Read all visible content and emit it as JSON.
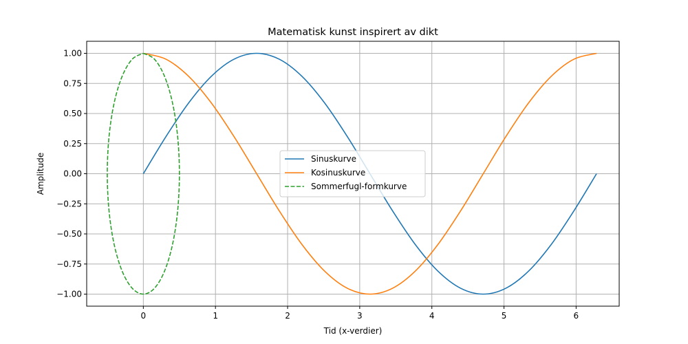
{
  "chart_data": {
    "type": "line",
    "title": "Matematisk kunst inspirert av dikt",
    "xlabel": "Tid (x-verdier)",
    "ylabel": "Amplitude",
    "xlim": [
      -0.7854,
      6.5973
    ],
    "ylim": [
      -1.1,
      1.1
    ],
    "xticks": [
      0,
      1,
      2,
      3,
      4,
      5,
      6
    ],
    "yticks": [
      -1.0,
      -0.75,
      -0.5,
      -0.25,
      0.0,
      0.25,
      0.5,
      0.75,
      1.0
    ],
    "grid": true,
    "legend_position": "center",
    "series": [
      {
        "name": "Sinuskurve",
        "color": "#1f77b4",
        "style": "solid",
        "x": [
          0,
          0.3142,
          0.6283,
          0.9425,
          1.2566,
          1.5708,
          1.885,
          2.1991,
          2.5133,
          2.8274,
          3.1416,
          3.4558,
          3.7699,
          4.0841,
          4.3982,
          4.7124,
          5.0265,
          5.3407,
          5.6549,
          5.969,
          6.2832
        ],
        "y": [
          0,
          0.309,
          0.5878,
          0.809,
          0.9511,
          1.0,
          0.9511,
          0.809,
          0.5878,
          0.309,
          0,
          -0.309,
          -0.5878,
          -0.809,
          -0.9511,
          -1.0,
          -0.9511,
          -0.809,
          -0.5878,
          -0.309,
          0
        ]
      },
      {
        "name": "Kosinuskurve",
        "color": "#ff7f0e",
        "style": "solid",
        "x": [
          0,
          0.3142,
          0.6283,
          0.9425,
          1.2566,
          1.5708,
          1.885,
          2.1991,
          2.5133,
          2.8274,
          3.1416,
          3.4558,
          3.7699,
          4.0841,
          4.3982,
          4.7124,
          5.0265,
          5.3407,
          5.6549,
          5.969,
          6.2832
        ],
        "y": [
          1.0,
          0.9511,
          0.809,
          0.5878,
          0.309,
          0,
          -0.309,
          -0.5878,
          -0.809,
          -0.9511,
          -1.0,
          -0.9511,
          -0.809,
          -0.5878,
          -0.309,
          0,
          0.309,
          0.5878,
          0.809,
          0.9511,
          1.0
        ]
      },
      {
        "name": "Sommerfugl-formkurve",
        "color": "#2ca02c",
        "style": "dashed",
        "x": [
          0,
          0.1545,
          0.2939,
          0.4045,
          0.4755,
          0.5,
          0.4755,
          0.4045,
          0.2939,
          0.1545,
          0,
          -0.1545,
          -0.2939,
          -0.4045,
          -0.4755,
          -0.5,
          -0.4755,
          -0.4045,
          -0.2939,
          -0.1545,
          0
        ],
        "y": [
          1.0,
          0.9511,
          0.809,
          0.5878,
          0.309,
          0,
          -0.309,
          -0.5878,
          -0.809,
          -0.9511,
          -1.0,
          -0.9511,
          -0.809,
          -0.5878,
          -0.309,
          0,
          0.309,
          0.5878,
          0.809,
          0.9511,
          1.0
        ]
      }
    ]
  }
}
